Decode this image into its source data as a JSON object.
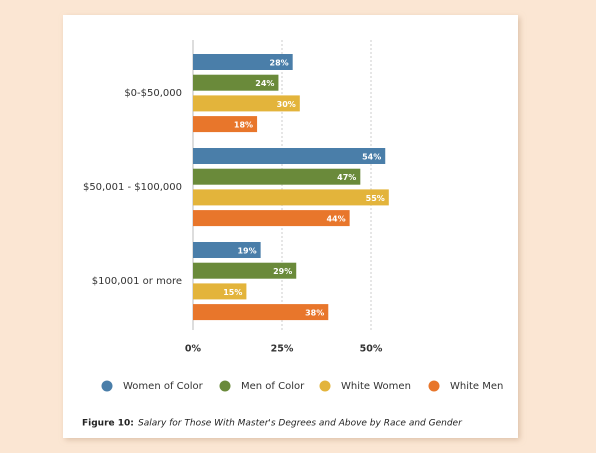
{
  "chart_data": {
    "type": "bar",
    "orientation": "horizontal",
    "categories": [
      "$0-$50,000",
      "$50,001 - $100,000",
      "$100,001 or more"
    ],
    "series": [
      {
        "name": "Women of Color",
        "color": "#4a7ea9",
        "values": [
          28,
          54,
          19
        ],
        "value_labels": [
          "28%",
          "54%",
          "19%"
        ]
      },
      {
        "name": "Men of Color",
        "color": "#6a8a3a",
        "values": [
          24,
          47,
          29
        ],
        "value_labels": [
          "24%",
          "47%",
          "29%"
        ]
      },
      {
        "name": "White Women",
        "color": "#e3b43b",
        "values": [
          30,
          55,
          15
        ],
        "value_labels": [
          "30%",
          "55%",
          "15%"
        ]
      },
      {
        "name": "White Men",
        "color": "#e8762b",
        "values": [
          18,
          44,
          38
        ],
        "value_labels": [
          "18%",
          "44%",
          "38%"
        ]
      }
    ],
    "xlim": [
      0,
      60
    ],
    "xticks": [
      {
        "value": 0,
        "label": "0%"
      },
      {
        "value": 25,
        "label": "25%"
      },
      {
        "value": 50,
        "label": "50%"
      }
    ],
    "grid": true,
    "caption_label": "Figure 10:",
    "caption": "Salary for Those With Master's Degrees and Above by Race and Gender"
  }
}
